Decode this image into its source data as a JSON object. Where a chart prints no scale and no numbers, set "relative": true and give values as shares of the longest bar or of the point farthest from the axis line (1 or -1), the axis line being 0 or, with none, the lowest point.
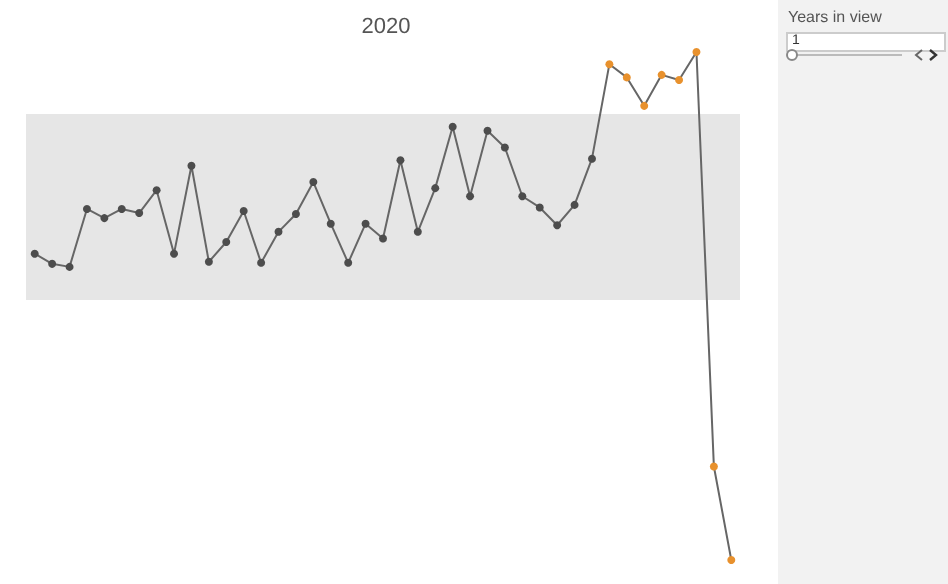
{
  "chart_data": {
    "type": "line",
    "title": "2020",
    "relative": true,
    "marker": "circle",
    "categories": [
      null,
      null,
      null,
      null,
      null,
      null,
      null,
      null,
      null,
      null,
      null,
      null,
      null,
      null,
      null,
      null,
      null,
      null,
      null,
      null,
      null,
      null,
      null,
      null,
      null,
      null,
      null,
      null,
      null,
      null,
      null,
      null,
      null,
      null,
      null,
      null,
      null,
      null,
      null,
      null,
      null
    ],
    "series": [
      {
        "color": "#666666",
        "values": [
          0.603,
          0.583,
          0.577,
          0.691,
          0.673,
          0.691,
          0.683,
          0.728,
          0.603,
          0.776,
          0.587,
          0.626,
          0.687,
          0.585,
          0.646,
          0.681,
          0.744,
          0.662,
          0.585,
          0.662,
          0.633,
          0.787,
          0.646,
          0.732,
          0.853,
          0.716,
          0.845,
          0.812,
          0.716,
          0.694,
          0.659,
          0.699,
          0.79,
          0.976,
          0.95,
          0.894,
          0.955,
          0.945,
          1.0,
          0.184,
          0
        ],
        "colors": [
          "#4d4d4d",
          "#4d4d4d",
          "#4d4d4d",
          "#4d4d4d",
          "#4d4d4d",
          "#4d4d4d",
          "#4d4d4d",
          "#4d4d4d",
          "#4d4d4d",
          "#4d4d4d",
          "#4d4d4d",
          "#4d4d4d",
          "#4d4d4d",
          "#4d4d4d",
          "#4d4d4d",
          "#4d4d4d",
          "#4d4d4d",
          "#4d4d4d",
          "#4d4d4d",
          "#4d4d4d",
          "#4d4d4d",
          "#4d4d4d",
          "#4d4d4d",
          "#4d4d4d",
          "#4d4d4d",
          "#4d4d4d",
          "#4d4d4d",
          "#4d4d4d",
          "#4d4d4d",
          "#4d4d4d",
          "#4d4d4d",
          "#4d4d4d",
          "#4d4d4d",
          "#e8912d",
          "#e8912d",
          "#e8912d",
          "#e8912d",
          "#e8912d",
          "#e8912d",
          "#e8912d",
          "#e8912d"
        ]
      }
    ],
    "bands": [
      {
        "axis": "y",
        "from": 0.512,
        "to": 0.878,
        "color": "#e6e6e6"
      }
    ],
    "annotations": [
      "Years in view",
      "1"
    ]
  }
}
